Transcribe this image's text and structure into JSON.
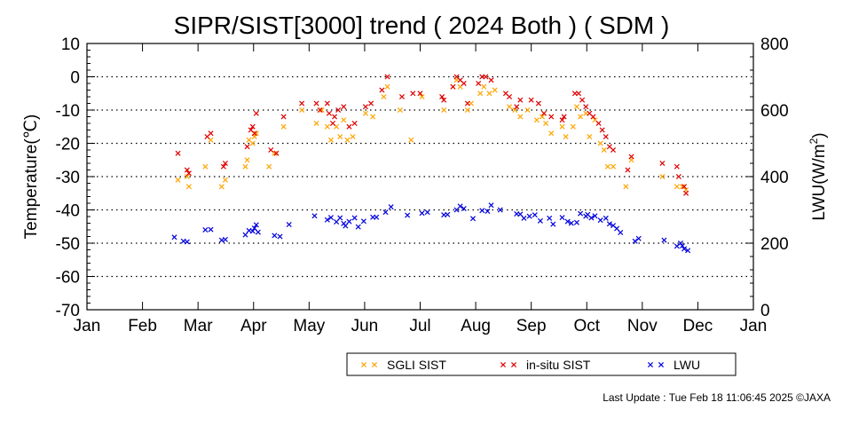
{
  "chart_data": {
    "type": "scatter",
    "title": "SIPR/SIST[3000] trend ( 2024 Both ) ( SDM )",
    "ylabel": "Temperature(℃)",
    "y2label_main": "LWU(W/m",
    "y2label_sup": "2",
    "y2label_end": ")",
    "ylim": [
      -70,
      10
    ],
    "y2lim": [
      0,
      800
    ],
    "yticks": [
      "10",
      "0",
      "-10",
      "-20",
      "-30",
      "-40",
      "-50",
      "-60",
      "-70"
    ],
    "y2ticks": [
      "800",
      "600",
      "400",
      "200",
      "0"
    ],
    "xticks": [
      "Jan",
      "Feb",
      "Mar",
      "Apr",
      "May",
      "Jun",
      "Jul",
      "Aug",
      "Sep",
      "Oct",
      "Nov",
      "Dec",
      "Jan"
    ],
    "grid": "horizontal-dotted",
    "legend_position": "bottom-right",
    "series": [
      {
        "name": "SGLI SIST",
        "color": "#ffa500",
        "axis": "left",
        "points": [
          [
            "2024-02-20",
            -31
          ],
          [
            "2024-02-25",
            -30
          ],
          [
            "2024-02-26",
            -33
          ],
          [
            "2024-03-06",
            -27
          ],
          [
            "2024-03-09",
            -19
          ],
          [
            "2024-03-15",
            -33
          ],
          [
            "2024-03-17",
            -31
          ],
          [
            "2024-03-28",
            -27
          ],
          [
            "2024-03-29",
            -25
          ],
          [
            "2024-03-30",
            -19
          ],
          [
            "2024-04-01",
            -20
          ],
          [
            "2024-04-02",
            -18
          ],
          [
            "2024-04-03",
            -17
          ],
          [
            "2024-04-10",
            -27
          ],
          [
            "2024-04-13",
            -23
          ],
          [
            "2024-04-18",
            -15
          ],
          [
            "2024-04-28",
            -10
          ],
          [
            "2024-05-06",
            -14
          ],
          [
            "2024-05-09",
            -10
          ],
          [
            "2024-05-12",
            -15
          ],
          [
            "2024-05-14",
            -19
          ],
          [
            "2024-05-17",
            -15
          ],
          [
            "2024-05-19",
            -18
          ],
          [
            "2024-05-21",
            -13
          ],
          [
            "2024-05-23",
            -19
          ],
          [
            "2024-05-26",
            -18
          ],
          [
            "2024-06-02",
            -11
          ],
          [
            "2024-06-06",
            -12
          ],
          [
            "2024-06-12",
            -6
          ],
          [
            "2024-06-14",
            -3
          ],
          [
            "2024-06-21",
            -10
          ],
          [
            "2024-06-27",
            -19
          ],
          [
            "2024-07-03",
            -6
          ],
          [
            "2024-07-15",
            -10
          ],
          [
            "2024-07-20",
            -3
          ],
          [
            "2024-07-22",
            -1
          ],
          [
            "2024-07-24",
            -3
          ],
          [
            "2024-07-28",
            -10
          ],
          [
            "2024-07-30",
            -8
          ],
          [
            "2024-08-04",
            -5
          ],
          [
            "2024-08-06",
            -3
          ],
          [
            "2024-08-09",
            -5
          ],
          [
            "2024-08-12",
            -4
          ],
          [
            "2024-08-20",
            -9
          ],
          [
            "2024-08-23",
            -10
          ],
          [
            "2024-08-26",
            -12
          ],
          [
            "2024-08-30",
            -10
          ],
          [
            "2024-09-04",
            -13
          ],
          [
            "2024-09-07",
            -12
          ],
          [
            "2024-09-09",
            -14
          ],
          [
            "2024-09-12",
            -17
          ],
          [
            "2024-09-18",
            -15
          ],
          [
            "2024-09-20",
            -18
          ],
          [
            "2024-09-24",
            -15
          ],
          [
            "2024-09-26",
            -9
          ],
          [
            "2024-09-28",
            -12
          ],
          [
            "2024-10-01",
            -11
          ],
          [
            "2024-10-03",
            -18
          ],
          [
            "2024-10-06",
            -13
          ],
          [
            "2024-10-09",
            -20
          ],
          [
            "2024-10-11",
            -22
          ],
          [
            "2024-10-13",
            -27
          ],
          [
            "2024-10-16",
            -27
          ],
          [
            "2024-10-23",
            -33
          ],
          [
            "2024-10-26",
            -25
          ],
          [
            "2024-11-12",
            -30
          ],
          [
            "2024-11-20",
            -33
          ],
          [
            "2024-11-23",
            -33
          ],
          [
            "2024-11-25",
            -34
          ]
        ]
      },
      {
        "name": "in-situ SIST",
        "color": "#e00000",
        "axis": "left",
        "points": [
          [
            "2024-02-20",
            -23
          ],
          [
            "2024-02-25",
            -28
          ],
          [
            "2024-02-26",
            -29
          ],
          [
            "2024-03-07",
            -18
          ],
          [
            "2024-03-09",
            -17
          ],
          [
            "2024-03-16",
            -27
          ],
          [
            "2024-03-17",
            -26
          ],
          [
            "2024-03-29",
            -21
          ],
          [
            "2024-03-31",
            -16
          ],
          [
            "2024-04-01",
            -15
          ],
          [
            "2024-04-02",
            -17
          ],
          [
            "2024-04-03",
            -11
          ],
          [
            "2024-04-11",
            -22
          ],
          [
            "2024-04-14",
            -23
          ],
          [
            "2024-04-18",
            -12
          ],
          [
            "2024-04-28",
            -8
          ],
          [
            "2024-05-06",
            -8
          ],
          [
            "2024-05-08",
            -10
          ],
          [
            "2024-05-12",
            -8
          ],
          [
            "2024-05-13",
            -11
          ],
          [
            "2024-05-15",
            -14
          ],
          [
            "2024-05-16",
            -12
          ],
          [
            "2024-05-18",
            -10
          ],
          [
            "2024-05-21",
            -9
          ],
          [
            "2024-05-24",
            -15
          ],
          [
            "2024-05-27",
            -14
          ],
          [
            "2024-06-02",
            -9
          ],
          [
            "2024-06-05",
            -8
          ],
          [
            "2024-06-11",
            -4
          ],
          [
            "2024-06-14",
            0
          ],
          [
            "2024-06-22",
            -6
          ],
          [
            "2024-06-28",
            -5
          ],
          [
            "2024-07-02",
            -5
          ],
          [
            "2024-07-14",
            -6
          ],
          [
            "2024-07-15",
            -7
          ],
          [
            "2024-07-20",
            -3
          ],
          [
            "2024-07-22",
            0
          ],
          [
            "2024-07-24",
            -1
          ],
          [
            "2024-07-26",
            -2
          ],
          [
            "2024-07-28",
            -8
          ],
          [
            "2024-08-03",
            -2
          ],
          [
            "2024-08-05",
            0
          ],
          [
            "2024-08-07",
            0
          ],
          [
            "2024-08-10",
            -1
          ],
          [
            "2024-08-18",
            -5
          ],
          [
            "2024-08-20",
            -6
          ],
          [
            "2024-08-24",
            -9
          ],
          [
            "2024-08-26",
            -7
          ],
          [
            "2024-09-01",
            -7
          ],
          [
            "2024-09-05",
            -8
          ],
          [
            "2024-09-08",
            -11
          ],
          [
            "2024-09-12",
            -12
          ],
          [
            "2024-09-18",
            -13
          ],
          [
            "2024-09-19",
            -12
          ],
          [
            "2024-09-25",
            -5
          ],
          [
            "2024-09-27",
            -5
          ],
          [
            "2024-09-29",
            -7
          ],
          [
            "2024-10-01",
            -9
          ],
          [
            "2024-10-03",
            -11
          ],
          [
            "2024-10-05",
            -12
          ],
          [
            "2024-10-08",
            -14
          ],
          [
            "2024-10-10",
            -16
          ],
          [
            "2024-10-12",
            -18
          ],
          [
            "2024-10-14",
            -21
          ],
          [
            "2024-10-16",
            -22
          ],
          [
            "2024-10-24",
            -28
          ],
          [
            "2024-10-26",
            -24
          ],
          [
            "2024-11-12",
            -26
          ],
          [
            "2024-11-20",
            -27
          ],
          [
            "2024-11-21",
            -30
          ],
          [
            "2024-11-24",
            -33
          ],
          [
            "2024-11-25",
            -35
          ]
        ]
      },
      {
        "name": "LWU",
        "color": "#0000dd",
        "axis": "right",
        "points": [
          [
            "2024-02-18",
            218
          ],
          [
            "2024-02-23",
            206
          ],
          [
            "2024-02-25",
            204
          ],
          [
            "2024-03-06",
            240
          ],
          [
            "2024-03-09",
            241
          ],
          [
            "2024-03-15",
            209
          ],
          [
            "2024-03-17",
            211
          ],
          [
            "2024-03-28",
            225
          ],
          [
            "2024-03-30",
            238
          ],
          [
            "2024-04-01",
            236
          ],
          [
            "2024-04-02",
            245
          ],
          [
            "2024-04-03",
            255
          ],
          [
            "2024-04-04",
            233
          ],
          [
            "2024-04-13",
            223
          ],
          [
            "2024-04-16",
            220
          ],
          [
            "2024-04-21",
            256
          ],
          [
            "2024-05-05",
            282
          ],
          [
            "2024-05-12",
            270
          ],
          [
            "2024-05-14",
            277
          ],
          [
            "2024-05-17",
            264
          ],
          [
            "2024-05-19",
            276
          ],
          [
            "2024-05-21",
            259
          ],
          [
            "2024-05-22",
            252
          ],
          [
            "2024-05-24",
            265
          ],
          [
            "2024-05-27",
            276
          ],
          [
            "2024-05-29",
            249
          ],
          [
            "2024-06-01",
            266
          ],
          [
            "2024-06-06",
            278
          ],
          [
            "2024-06-08",
            278
          ],
          [
            "2024-06-13",
            293
          ],
          [
            "2024-06-16",
            309
          ],
          [
            "2024-06-25",
            284
          ],
          [
            "2024-07-03",
            290
          ],
          [
            "2024-07-06",
            293
          ],
          [
            "2024-07-15",
            285
          ],
          [
            "2024-07-17",
            286
          ],
          [
            "2024-07-22",
            300
          ],
          [
            "2024-07-24",
            311
          ],
          [
            "2024-07-26",
            304
          ],
          [
            "2024-07-31",
            274
          ],
          [
            "2024-08-05",
            298
          ],
          [
            "2024-08-08",
            296
          ],
          [
            "2024-08-10",
            314
          ],
          [
            "2024-08-15",
            300
          ],
          [
            "2024-08-24",
            288
          ],
          [
            "2024-08-26",
            287
          ],
          [
            "2024-08-28",
            275
          ],
          [
            "2024-08-31",
            281
          ],
          [
            "2024-09-03",
            285
          ],
          [
            "2024-09-06",
            267
          ],
          [
            "2024-09-11",
            275
          ],
          [
            "2024-09-13",
            257
          ],
          [
            "2024-09-18",
            277
          ],
          [
            "2024-09-21",
            265
          ],
          [
            "2024-09-23",
            260
          ],
          [
            "2024-09-26",
            262
          ],
          [
            "2024-09-28",
            289
          ],
          [
            "2024-10-01",
            281
          ],
          [
            "2024-10-02",
            286
          ],
          [
            "2024-10-04",
            276
          ],
          [
            "2024-10-06",
            282
          ],
          [
            "2024-10-09",
            269
          ],
          [
            "2024-10-12",
            275
          ],
          [
            "2024-10-14",
            258
          ],
          [
            "2024-10-16",
            253
          ],
          [
            "2024-10-18",
            244
          ],
          [
            "2024-10-20",
            232
          ],
          [
            "2024-10-28",
            206
          ],
          [
            "2024-10-30",
            214
          ],
          [
            "2024-11-13",
            209
          ],
          [
            "2024-11-20",
            191
          ],
          [
            "2024-11-22",
            200
          ],
          [
            "2024-11-23",
            192
          ],
          [
            "2024-11-24",
            183
          ],
          [
            "2024-11-26",
            178
          ]
        ]
      }
    ]
  },
  "footer": {
    "last_update": "Last Update : Tue Feb 18 11:06:45 2025  ©JAXA"
  }
}
